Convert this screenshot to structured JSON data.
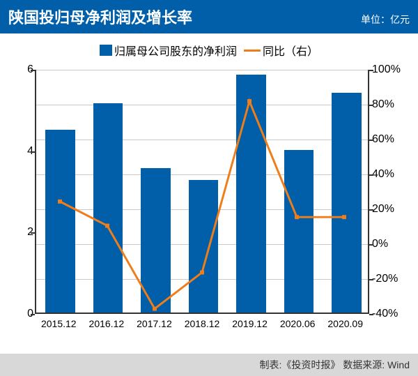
{
  "header": {
    "title": "陕国投归母净利润及增长率",
    "unit": "单位：亿元"
  },
  "legend": {
    "bar_label": "归属母公司股东的净利润",
    "line_label": "同比（右）"
  },
  "chart": {
    "type": "bar+line",
    "categories": [
      "2015.12",
      "2016.12",
      "2017.12",
      "2018.12",
      "2019.12",
      "2020.06",
      "2020.09"
    ],
    "bar_values": [
      4.5,
      5.15,
      3.55,
      3.25,
      5.85,
      4.0,
      5.4
    ],
    "line_values": [
      24,
      10,
      -38,
      -17,
      82,
      15,
      15
    ],
    "bar_color": "#005fa8",
    "line_color": "#ef7e1a",
    "grid_color": "#c9c9c9",
    "axis_color": "#333333",
    "background_color": "#ffffff",
    "y_left": {
      "min": 0,
      "max": 6,
      "ticks": [
        0,
        2,
        4,
        6
      ]
    },
    "y_right": {
      "min": -40,
      "max": 100,
      "ticks": [
        -40,
        -20,
        0,
        20,
        40,
        60,
        80,
        100
      ],
      "suffix": "%"
    },
    "bar_width_ratio": 0.62,
    "line_width": 3,
    "marker_size": 6,
    "title_fontsize": 22,
    "label_fontsize": 16,
    "xlabel_fontsize": 14
  },
  "footer": {
    "text": "制表:《投资时报》  数据来源: Wind"
  }
}
